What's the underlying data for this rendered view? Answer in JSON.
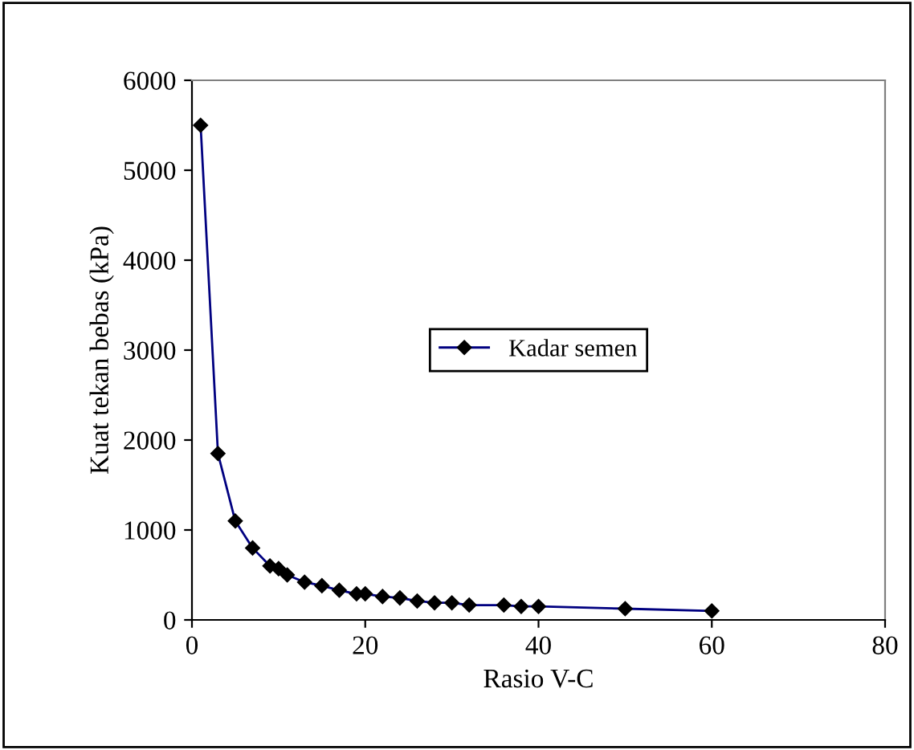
{
  "chart_data": {
    "type": "line",
    "xlabel": "Rasio V-C",
    "ylabel": "Kuat tekan bebas (kPa)",
    "xlim": [
      0,
      80
    ],
    "xticks": [
      0,
      20,
      40,
      60,
      80
    ],
    "ylim": [
      0,
      6000
    ],
    "yticks": [
      0,
      1000,
      2000,
      3000,
      4000,
      5000,
      6000
    ],
    "grid": false,
    "legend": "center",
    "marker": "diamond",
    "line_style": "solid",
    "series": [
      {
        "name": "Kadar semen",
        "color": "#000080",
        "x": [
          1,
          3,
          5,
          7,
          9,
          10,
          11,
          13,
          15,
          17,
          19,
          20,
          22,
          24,
          26,
          28,
          30,
          32,
          36,
          38,
          40,
          50,
          60
        ],
        "values": [
          5500,
          1850,
          1100,
          800,
          600,
          570,
          500,
          420,
          380,
          330,
          290,
          290,
          260,
          245,
          210,
          190,
          190,
          165,
          165,
          150,
          150,
          125,
          100
        ]
      }
    ]
  }
}
